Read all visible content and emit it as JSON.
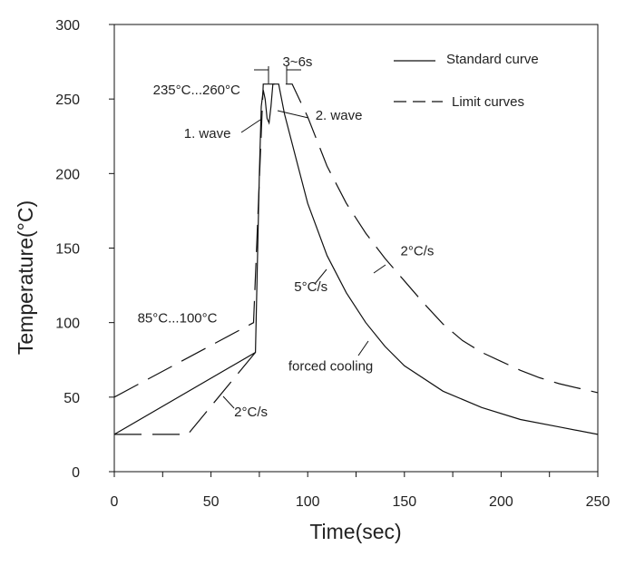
{
  "chart_data": {
    "type": "line",
    "xlabel": "Time(sec)",
    "ylabel": "Temperature(°C)",
    "xlim": [
      0,
      250
    ],
    "ylim": [
      0,
      300
    ],
    "xticks": [
      0,
      50,
      100,
      150,
      200,
      250
    ],
    "yticks": [
      0,
      50,
      100,
      150,
      200,
      250,
      300
    ],
    "grid": false,
    "legend_position": "top-right",
    "series": [
      {
        "name": "Standard curve",
        "style": "solid",
        "points": [
          [
            0,
            25
          ],
          [
            73,
            80
          ],
          [
            75,
            200
          ],
          [
            76,
            245
          ],
          [
            77,
            256
          ],
          [
            78,
            250
          ],
          [
            79,
            237
          ],
          [
            80,
            234
          ],
          [
            81,
            245
          ],
          [
            82,
            260
          ],
          [
            85,
            260
          ],
          [
            88,
            240
          ],
          [
            95,
            205
          ],
          [
            100,
            180
          ],
          [
            110,
            145
          ],
          [
            120,
            120
          ],
          [
            130,
            100
          ],
          [
            140,
            84
          ],
          [
            150,
            71
          ],
          [
            170,
            54
          ],
          [
            190,
            43
          ],
          [
            210,
            35
          ],
          [
            230,
            30
          ],
          [
            250,
            25
          ]
        ]
      },
      {
        "name": "Limit curves",
        "style": "dashed",
        "points": [
          [
            0,
            50
          ],
          [
            72,
            100
          ],
          [
            77,
            260
          ],
          [
            92,
            260
          ],
          [
            100,
            238
          ],
          [
            110,
            205
          ],
          [
            120,
            180
          ],
          [
            130,
            160
          ],
          [
            140,
            143
          ],
          [
            150,
            128
          ],
          [
            160,
            113
          ],
          [
            170,
            99
          ],
          [
            180,
            88
          ],
          [
            190,
            80
          ],
          [
            200,
            74
          ],
          [
            210,
            68
          ],
          [
            220,
            63
          ],
          [
            230,
            59
          ],
          [
            240,
            56
          ],
          [
            250,
            53
          ]
        ]
      },
      {
        "name": "Limit curves",
        "style": "dashed",
        "points": [
          [
            0,
            25
          ],
          [
            38,
            25
          ],
          [
            73,
            80
          ]
        ]
      }
    ],
    "annotations": [
      {
        "text": "3~6s",
        "x": 87,
        "y": 272
      },
      {
        "text": "235°C...260°C",
        "x": 20,
        "y": 253
      },
      {
        "text": "1. wave",
        "x": 36,
        "y": 224
      },
      {
        "text": "2. wave",
        "x": 104,
        "y": 236
      },
      {
        "text": "2°C/s",
        "x": 148,
        "y": 145
      },
      {
        "text": "5°C/s",
        "x": 93,
        "y": 121
      },
      {
        "text": "85°C...100°C",
        "x": 12,
        "y": 100
      },
      {
        "text": "forced cooling",
        "x": 90,
        "y": 68
      },
      {
        "text": "2°C/s",
        "x": 62,
        "y": 37
      }
    ]
  }
}
